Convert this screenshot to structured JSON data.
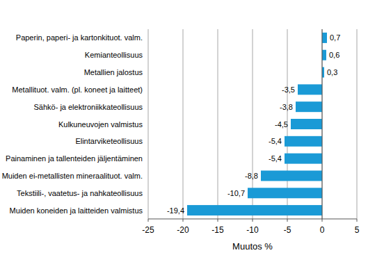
{
  "chart_data": {
    "type": "bar",
    "orientation": "horizontal",
    "x_label": "Muutos %",
    "categories": [
      "Paperin, paperi- ja kartonkituot. valm.",
      "Kemianteollisuus",
      "Metallien jalostus",
      "Metallituot. valm. (pl. koneet ja laitteet)",
      "Sähkö- ja elektroniikkateollisuus",
      "Kulkuneuvojen valmistus",
      "Elintarviketeollisuus",
      "Painaminen ja tallenteiden jäljentäminen",
      "Muiden ei-metallisten mineraalituot. valm.",
      "Tekstiili-, vaatetus- ja nahkateollisuus",
      "Muiden koneiden ja laitteiden valmistus"
    ],
    "values": [
      0.7,
      0.6,
      0.3,
      -3.5,
      -3.8,
      -4.5,
      -5.4,
      -5.4,
      -8.8,
      -10.7,
      -19.4
    ],
    "value_labels": [
      "0,7",
      "0,6",
      "0,3",
      "-3,5",
      "-3,8",
      "-4,5",
      "-5,4",
      "-5,4",
      "-8,8",
      "-10,7",
      "-19,4"
    ],
    "color": "#1a9ad6",
    "xlim": [
      -25,
      5
    ],
    "xticks": [
      -25,
      -20,
      -15,
      -10,
      -5,
      0,
      5
    ],
    "grid": true,
    "data_labels": true
  }
}
